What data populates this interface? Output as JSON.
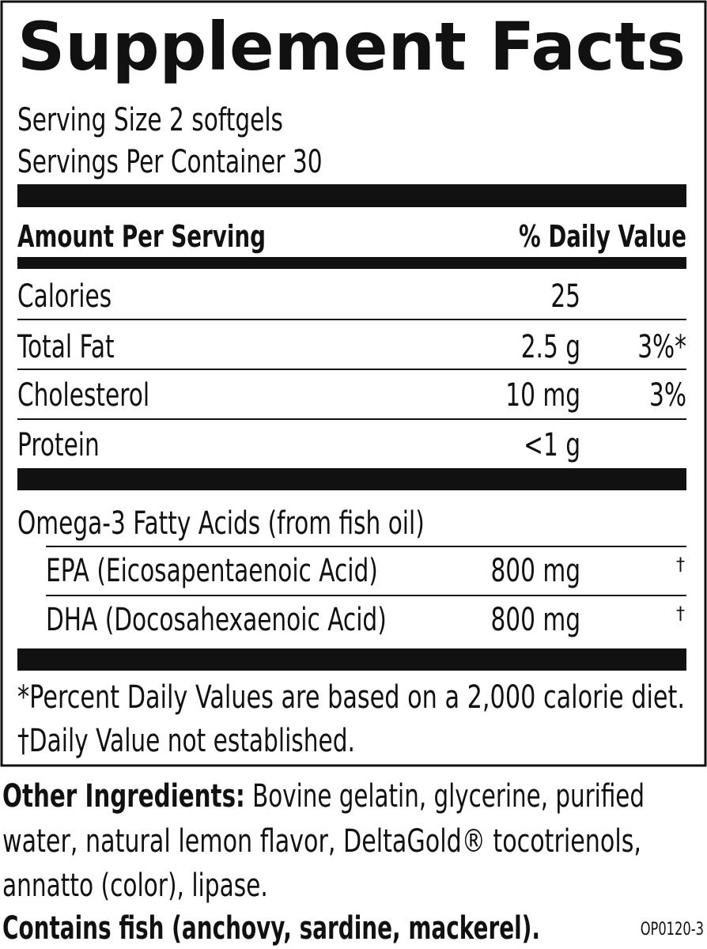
{
  "title": "Supplement Facts",
  "serving_size": "Serving Size 2 softgels",
  "servings_per_container": "Servings Per Container 30",
  "table": {
    "header": {
      "amount": "Amount Per Serving",
      "daily_value": "% Daily Value"
    },
    "rows": [
      {
        "name": "Calories",
        "amount": "25"
      },
      {
        "name": "Total Fat",
        "amount": "2.5 g",
        "daily_value": "3%*"
      },
      {
        "name": "Cholesterol",
        "amount": "10 mg",
        "daily_value": "3%"
      },
      {
        "name": "Protein",
        "amount": "<1 g"
      }
    ],
    "group": {
      "label": "Omega-3 Fatty Acids (from fish oil)",
      "rows": [
        {
          "name": "EPA (Eicosapentaenoic Acid)",
          "amount": "800 mg",
          "daily_value": "†"
        },
        {
          "name": "DHA (Docosahexaenoic Acid)",
          "amount": "800 mg",
          "daily_value": "†"
        }
      ]
    }
  },
  "footnotes": [
    "*Percent Daily Values are based on a 2,000 calorie diet.",
    "†Daily Value not established."
  ],
  "other_ingredients": {
    "label": "Other Ingredients:",
    "lines": [
      "Bovine gelatin, glycerine, purified",
      "water, natural lemon flavor, DeltaGold® tocotrienols,",
      "annatto (color), lipase."
    ]
  },
  "allergen": "Contains fish (anchovy, sardine, mackerel).",
  "code": "OP0120-3"
}
